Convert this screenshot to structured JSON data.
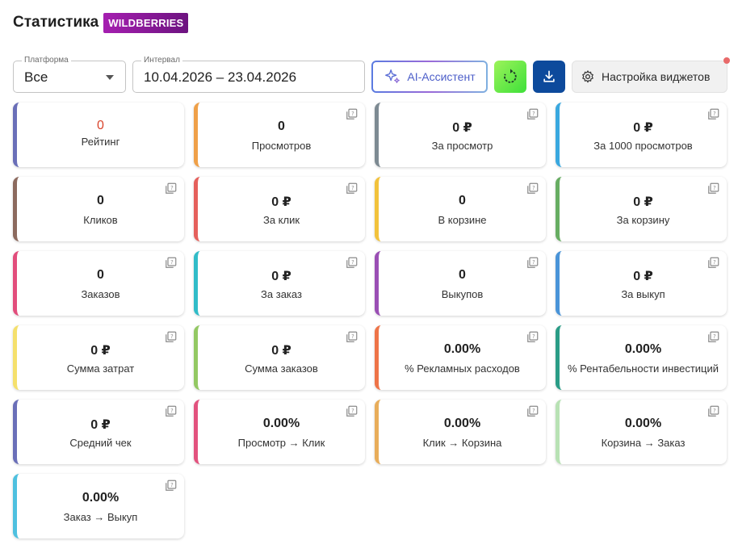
{
  "header": {
    "title": "Статистика",
    "brand_badge": "WILDBERRIES"
  },
  "toolbar": {
    "platform": {
      "label": "Платформа",
      "value": "Все"
    },
    "interval": {
      "label": "Интервал",
      "value": "10.04.2026 – 23.04.2026"
    },
    "ai_button": "AI-Ассистент",
    "settings_button": "Настройка виджетов"
  },
  "colors": {
    "value_first": "#d9442c",
    "refresh": "#5be842",
    "download": "#0d4a9c",
    "notification": "#e86a6a"
  },
  "cards": [
    {
      "value": "0",
      "label": "Рейтинг",
      "color": "#6a6fb8"
    },
    {
      "value": "0",
      "label": "Просмотров",
      "color": "#efa048"
    },
    {
      "value": "0 ₽",
      "label": "За просмотр",
      "color": "#7d8a92"
    },
    {
      "value": "0 ₽",
      "label": "За 1000 просмотров",
      "color": "#3aa8df"
    },
    {
      "value": "0",
      "label": "Кликов",
      "color": "#8c6a5e"
    },
    {
      "value": "0 ₽",
      "label": "За клик",
      "color": "#e5605c"
    },
    {
      "value": "0",
      "label": "В корзине",
      "color": "#f2c23c"
    },
    {
      "value": "0 ₽",
      "label": "За корзину",
      "color": "#67ad62"
    },
    {
      "value": "0",
      "label": "Заказов",
      "color": "#e24d7c"
    },
    {
      "value": "0 ₽",
      "label": "За заказ",
      "color": "#31bcc8"
    },
    {
      "value": "0",
      "label": "Выкупов",
      "color": "#9a4fb4"
    },
    {
      "value": "0 ₽",
      "label": "За выкуп",
      "color": "#4a94d8"
    },
    {
      "value": "0 ₽",
      "label": "Сумма затрат",
      "color": "#f5e06c"
    },
    {
      "value": "0 ₽",
      "label": "Сумма заказов",
      "color": "#93c863"
    },
    {
      "value": "0.00%",
      "label": "% Рекламных расходов",
      "color": "#ee7448"
    },
    {
      "value": "0.00%",
      "label": "% Рентабельности инвестиций",
      "color": "#2a9c86"
    },
    {
      "value": "0 ₽",
      "label": "Средний чек",
      "color": "#6a6fb8"
    },
    {
      "value": "0.00%",
      "label": "Просмотр → Клик",
      "color": "#e2527e"
    },
    {
      "value": "0.00%",
      "label": "Клик → Корзина",
      "color": "#e8ad5a"
    },
    {
      "value": "0.00%",
      "label": "Корзина → Заказ",
      "color": "#b8e2b4"
    },
    {
      "value": "0.00%",
      "label": "Заказ → Выкуп",
      "color": "#4ec0df"
    }
  ]
}
